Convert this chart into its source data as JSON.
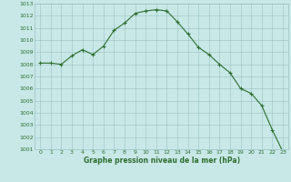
{
  "x": [
    0,
    1,
    2,
    3,
    4,
    5,
    6,
    7,
    8,
    9,
    10,
    11,
    12,
    13,
    14,
    15,
    16,
    17,
    18,
    19,
    20,
    21,
    22,
    23
  ],
  "y": [
    1008.1,
    1008.1,
    1008.0,
    1008.7,
    1009.2,
    1008.8,
    1009.5,
    1010.8,
    1011.4,
    1012.2,
    1012.4,
    1012.5,
    1012.4,
    1011.5,
    1010.5,
    1009.4,
    1008.8,
    1008.0,
    1007.3,
    1006.0,
    1005.6,
    1004.6,
    1002.6,
    1000.8
  ],
  "line_color": "#2d6e2d",
  "marker": "+",
  "marker_size": 3,
  "background_color": "#c8e8e8",
  "grid_color": "#9bbfbf",
  "xlabel": "Graphe pression niveau de la mer (hPa)",
  "xlabel_color": "#2d6e2d",
  "tick_color": "#2d6e2d",
  "ylim": [
    1001,
    1013
  ],
  "xlim": [
    -0.5,
    23.5
  ],
  "yticks": [
    1001,
    1002,
    1003,
    1004,
    1005,
    1006,
    1007,
    1008,
    1009,
    1010,
    1011,
    1012,
    1013
  ],
  "xticks": [
    0,
    1,
    2,
    3,
    4,
    5,
    6,
    7,
    8,
    9,
    10,
    11,
    12,
    13,
    14,
    15,
    16,
    17,
    18,
    19,
    20,
    21,
    22,
    23
  ],
  "line_width": 0.8,
  "marker_edge_width": 0.8,
  "tick_label_size": 4.5,
  "xlabel_fontsize": 5.5,
  "spine_color": "#9bbfbf"
}
